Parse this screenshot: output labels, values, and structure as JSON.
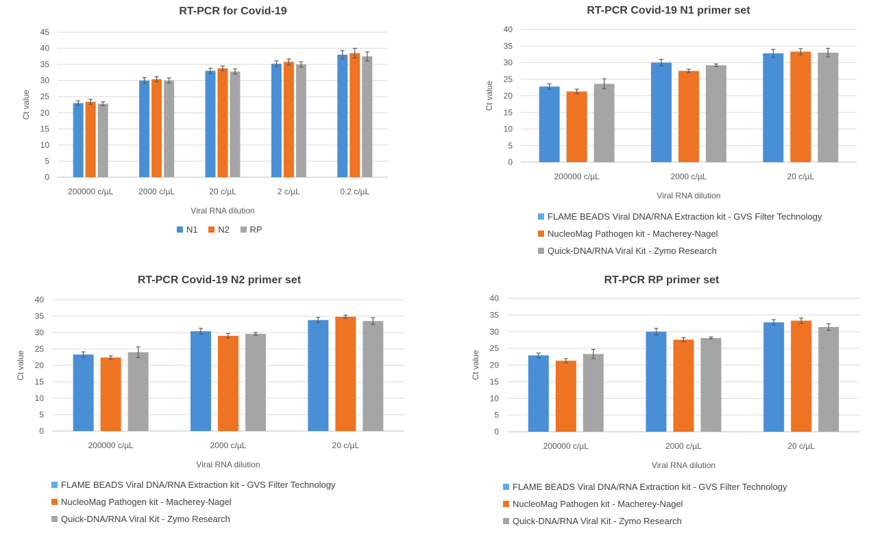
{
  "colors": {
    "blue": "#4A8FD6",
    "orange": "#EE7322",
    "gray": "#A5A5A5",
    "light_blue": "#5BAEE6"
  },
  "chart_data": [
    {
      "type": "bar",
      "title": "RT-PCR for Covid-19",
      "xlabel": "Viral RNA dilution",
      "ylabel": "Ct value",
      "ylim": [
        0,
        45
      ],
      "yticks": [
        0,
        5,
        10,
        15,
        20,
        25,
        30,
        35,
        40,
        45
      ],
      "grid": true,
      "legend_position": "bottom",
      "categories": [
        "200000 c/µL",
        "2000 c/µL",
        "20 c/µL",
        "2 c/µL",
        "0.2 c/µL"
      ],
      "series": [
        {
          "name": "N1",
          "color": "#4A8FD6",
          "values": [
            23.0,
            30.0,
            33.0,
            35.2,
            38.0
          ],
          "errors": [
            0.7,
            0.9,
            0.8,
            0.9,
            1.3
          ]
        },
        {
          "name": "N2",
          "color": "#EE7322",
          "values": [
            23.4,
            30.4,
            33.8,
            35.8,
            38.5
          ],
          "errors": [
            0.8,
            0.8,
            0.7,
            0.9,
            1.5
          ]
        },
        {
          "name": "RP",
          "color": "#A5A5A5",
          "values": [
            22.8,
            30.0,
            32.8,
            35.0,
            37.5
          ],
          "errors": [
            0.6,
            0.8,
            0.8,
            0.8,
            1.4
          ]
        }
      ]
    },
    {
      "type": "bar",
      "title": "RT-PCR Covid-19 N1 primer set",
      "xlabel": "Viral RNA dilution",
      "ylabel": "Ct value",
      "ylim": [
        0,
        40
      ],
      "yticks": [
        0,
        5,
        10,
        15,
        20,
        25,
        30,
        35,
        40
      ],
      "grid": true,
      "legend_position": "bottom",
      "categories": [
        "200000 c/µL",
        "2000 c/µL",
        "20 c/µL"
      ],
      "series": [
        {
          "name": "FLAME BEADS Viral DNA/RNA Extraction kit - GVS Filter Technology",
          "color": "#4A8FD6",
          "values": [
            22.8,
            30.0,
            32.8
          ],
          "errors": [
            0.8,
            1.0,
            1.2
          ]
        },
        {
          "name": "NucleoMag Pathogen kit - Macherey-Nagel",
          "color": "#EE7322",
          "values": [
            21.3,
            27.5,
            33.3
          ],
          "errors": [
            0.7,
            0.5,
            0.9
          ]
        },
        {
          "name": "Quick-DNA/RNA Viral Kit - Zymo Research",
          "color": "#A5A5A5",
          "values": [
            23.6,
            29.2,
            33.0
          ],
          "errors": [
            1.5,
            0.4,
            1.3
          ]
        }
      ]
    },
    {
      "type": "bar",
      "title": "RT-PCR Covid-19 N2 primer set",
      "xlabel": "Viral RNA dilution",
      "ylabel": "Ct value",
      "ylim": [
        0,
        40
      ],
      "yticks": [
        0,
        5,
        10,
        15,
        20,
        25,
        30,
        35,
        40
      ],
      "grid": true,
      "legend_position": "bottom",
      "categories": [
        "200000 c/µL",
        "2000 c/µL",
        "20 c/µL"
      ],
      "series": [
        {
          "name": "FLAME BEADS Viral DNA/RNA Extraction kit - GVS Filter Technology",
          "color": "#4A8FD6",
          "values": [
            23.3,
            30.4,
            33.8
          ],
          "errors": [
            0.8,
            0.9,
            0.8
          ]
        },
        {
          "name": "NucleoMag Pathogen kit - Macherey-Nagel",
          "color": "#EE7322",
          "values": [
            22.4,
            29.0,
            34.8
          ],
          "errors": [
            0.5,
            0.7,
            0.5
          ]
        },
        {
          "name": "Quick-DNA/RNA Viral Kit - Zymo Research",
          "color": "#A5A5A5",
          "values": [
            24.0,
            29.6,
            33.5
          ],
          "errors": [
            1.6,
            0.4,
            1.0
          ]
        }
      ]
    },
    {
      "type": "bar",
      "title": "RT-PCR  RP primer set",
      "xlabel": "Viral RNA dilution",
      "ylabel": "Ct value",
      "ylim": [
        0,
        40
      ],
      "yticks": [
        0,
        5,
        10,
        15,
        20,
        25,
        30,
        35,
        40
      ],
      "grid": true,
      "legend_position": "bottom",
      "categories": [
        "200000 c/µL",
        "2000 c/µL",
        "20 c/µL"
      ],
      "series": [
        {
          "name": "FLAME BEADS Viral DNA/RNA Extraction kit - GVS Filter Technology",
          "color": "#4A8FD6",
          "values": [
            22.9,
            30.0,
            32.8
          ],
          "errors": [
            0.7,
            1.0,
            0.8
          ]
        },
        {
          "name": "NucleoMag Pathogen kit - Macherey-Nagel",
          "color": "#EE7322",
          "values": [
            21.3,
            27.6,
            33.3
          ],
          "errors": [
            0.6,
            0.6,
            0.8
          ]
        },
        {
          "name": "Quick-DNA/RNA Viral Kit - Zymo Research",
          "color": "#A5A5A5",
          "values": [
            23.3,
            28.1,
            31.4
          ],
          "errors": [
            1.4,
            0.3,
            1.0
          ]
        }
      ]
    }
  ]
}
